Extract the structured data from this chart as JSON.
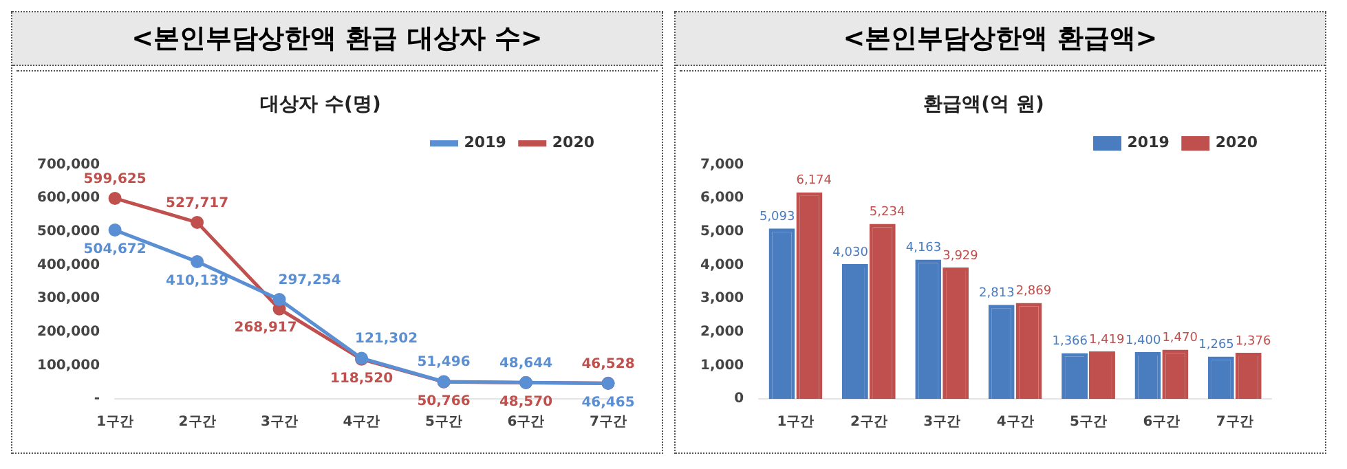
{
  "chart_data": [
    {
      "type": "line",
      "title": "<본인부담상한액 환급 대상자 수>",
      "subtitle": "대상자 수(명)",
      "categories": [
        "1구간",
        "2구간",
        "3구간",
        "4구간",
        "5구간",
        "6구간",
        "7구간"
      ],
      "series": [
        {
          "name": "2019",
          "color": "#5b8fd4",
          "values": [
            504672,
            410139,
            297254,
            121302,
            51496,
            48644,
            46465
          ],
          "value_labels": [
            "504,672",
            "410,139",
            "297,254",
            "121,302",
            "51,496",
            "48,644",
            "46,465"
          ]
        },
        {
          "name": "2020",
          "color": "#c0504d",
          "values": [
            599625,
            527717,
            268917,
            118520,
            50766,
            48570,
            46528
          ],
          "value_labels": [
            "599,625",
            "527,717",
            "268,917",
            "118,520",
            "50,766",
            "48,570",
            "46,528"
          ]
        }
      ],
      "ylim": [
        0,
        700000
      ],
      "yticks": [
        {
          "value": 0,
          "label": "-"
        },
        {
          "value": 100000,
          "label": "100,000"
        },
        {
          "value": 200000,
          "label": "200,000"
        },
        {
          "value": 300000,
          "label": "300,000"
        },
        {
          "value": 400000,
          "label": "400,000"
        },
        {
          "value": 500000,
          "label": "500,000"
        },
        {
          "value": 600000,
          "label": "600,000"
        },
        {
          "value": 700000,
          "label": "700,000"
        }
      ],
      "grid": false,
      "legend": "top right",
      "marker": "circle"
    },
    {
      "type": "bar",
      "title": "<본인부담상한액 환급액>",
      "subtitle": "환급액(억 원)",
      "categories": [
        "1구간",
        "2구간",
        "3구간",
        "4구간",
        "5구간",
        "6구간",
        "7구간"
      ],
      "series": [
        {
          "name": "2019",
          "color": "#4a7cc0",
          "values": [
            5093,
            4030,
            4163,
            2813,
            1366,
            1400,
            1265
          ],
          "value_labels": [
            "5,093",
            "4,030",
            "4,163",
            "2,813",
            "1,366",
            "1,400",
            "1,265"
          ]
        },
        {
          "name": "2020",
          "color": "#c0504d",
          "values": [
            6174,
            5234,
            3929,
            2869,
            1419,
            1470,
            1376
          ],
          "value_labels": [
            "6,174",
            "5,234",
            "3,929",
            "2,869",
            "1,419",
            "1,470",
            "1,376"
          ]
        }
      ],
      "ylim": [
        0,
        7000
      ],
      "yticks": [
        {
          "value": 0,
          "label": "0"
        },
        {
          "value": 1000,
          "label": "1,000"
        },
        {
          "value": 2000,
          "label": "2,000"
        },
        {
          "value": 3000,
          "label": "3,000"
        },
        {
          "value": 4000,
          "label": "4,000"
        },
        {
          "value": 5000,
          "label": "5,000"
        },
        {
          "value": 6000,
          "label": "6,000"
        },
        {
          "value": 7000,
          "label": "7,000"
        }
      ],
      "grid": false,
      "legend": "top right"
    }
  ]
}
